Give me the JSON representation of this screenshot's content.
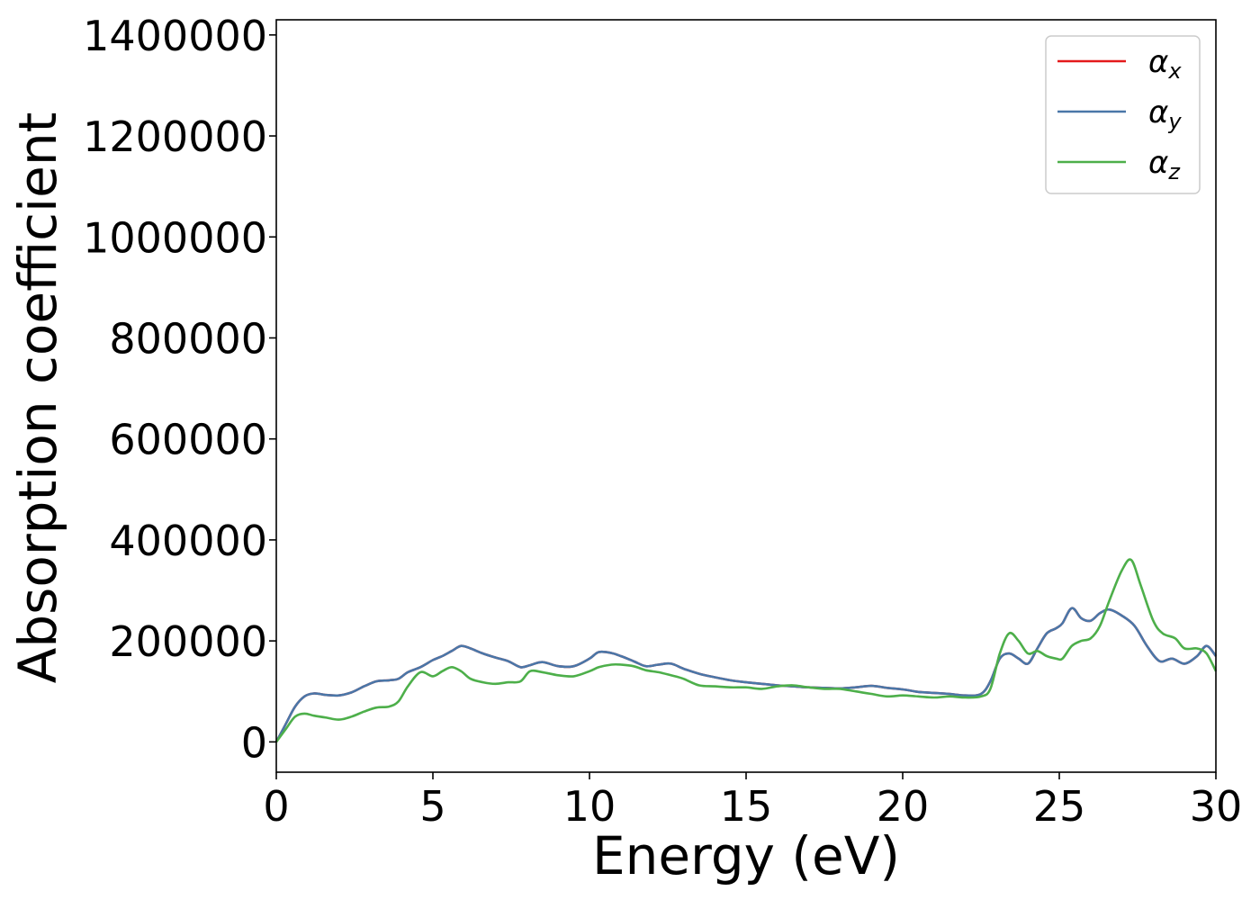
{
  "chart_data": {
    "type": "line",
    "title": "",
    "xlabel": "Energy (eV)",
    "ylabel": "Absorption coefficient",
    "xlim": [
      0,
      30
    ],
    "ylim": [
      -60000,
      1430000
    ],
    "xticks": [
      0,
      5,
      10,
      15,
      20,
      25,
      30
    ],
    "yticks": [
      0,
      200000,
      400000,
      600000,
      800000,
      1000000,
      1200000,
      1400000
    ],
    "xtick_labels": [
      "0",
      "5",
      "10",
      "15",
      "20",
      "25",
      "30"
    ],
    "ytick_labels": [
      "0",
      "200000",
      "400000",
      "600000",
      "800000",
      "1000000",
      "1200000",
      "1400000"
    ],
    "grid": false,
    "legend_position": "top-right",
    "series": [
      {
        "name": "α",
        "subscript": "x",
        "color": "#e41a1c",
        "x": [
          0,
          0.3,
          0.6,
          0.9,
          1.2,
          1.6,
          2.0,
          2.4,
          2.8,
          3.2,
          3.6,
          3.9,
          4.2,
          4.6,
          5.0,
          5.3,
          5.6,
          5.9,
          6.2,
          6.6,
          7.0,
          7.4,
          7.8,
          8.1,
          8.5,
          9.0,
          9.5,
          10.0,
          10.3,
          10.7,
          11.0,
          11.4,
          11.8,
          12.2,
          12.6,
          13.0,
          13.5,
          14.0,
          14.5,
          15.0,
          15.5,
          16.0,
          16.5,
          17.0,
          17.5,
          18.0,
          18.5,
          19.0,
          19.5,
          20.0,
          20.5,
          21.0,
          21.5,
          22.0,
          22.5,
          22.8,
          23.1,
          23.4,
          23.7,
          24.0,
          24.3,
          24.6,
          24.9,
          25.1,
          25.4,
          25.7,
          26.0,
          26.3,
          26.6,
          27.0,
          27.4,
          27.8,
          28.2,
          28.6,
          29.0,
          29.4,
          29.7,
          30.0
        ],
        "values": [
          0,
          35000,
          70000,
          90000,
          96000,
          93000,
          92000,
          98000,
          110000,
          120000,
          122000,
          125000,
          138000,
          148000,
          162000,
          170000,
          180000,
          190000,
          185000,
          175000,
          167000,
          160000,
          148000,
          152000,
          158000,
          150000,
          150000,
          165000,
          178000,
          176000,
          170000,
          160000,
          150000,
          153000,
          155000,
          145000,
          135000,
          128000,
          122000,
          118000,
          115000,
          112000,
          110000,
          108000,
          107000,
          106000,
          108000,
          111000,
          107000,
          104000,
          99000,
          97000,
          95000,
          92000,
          95000,
          120000,
          165000,
          175000,
          165000,
          155000,
          185000,
          215000,
          225000,
          235000,
          265000,
          245000,
          240000,
          255000,
          262000,
          250000,
          230000,
          190000,
          160000,
          165000,
          155000,
          170000,
          190000,
          170000
        ]
      },
      {
        "name": "α",
        "subscript": "y",
        "color": "#4a77a8",
        "x": [
          0,
          0.3,
          0.6,
          0.9,
          1.2,
          1.6,
          2.0,
          2.4,
          2.8,
          3.2,
          3.6,
          3.9,
          4.2,
          4.6,
          5.0,
          5.3,
          5.6,
          5.9,
          6.2,
          6.6,
          7.0,
          7.4,
          7.8,
          8.1,
          8.5,
          9.0,
          9.5,
          10.0,
          10.3,
          10.7,
          11.0,
          11.4,
          11.8,
          12.2,
          12.6,
          13.0,
          13.5,
          14.0,
          14.5,
          15.0,
          15.5,
          16.0,
          16.5,
          17.0,
          17.5,
          18.0,
          18.5,
          19.0,
          19.5,
          20.0,
          20.5,
          21.0,
          21.5,
          22.0,
          22.5,
          22.8,
          23.1,
          23.4,
          23.7,
          24.0,
          24.3,
          24.6,
          24.9,
          25.1,
          25.4,
          25.7,
          26.0,
          26.3,
          26.6,
          27.0,
          27.4,
          27.8,
          28.2,
          28.6,
          29.0,
          29.4,
          29.7,
          30.0
        ],
        "values": [
          0,
          35000,
          70000,
          90000,
          96000,
          93000,
          92000,
          98000,
          110000,
          120000,
          122000,
          125000,
          138000,
          148000,
          162000,
          170000,
          180000,
          190000,
          185000,
          175000,
          167000,
          160000,
          148000,
          152000,
          158000,
          150000,
          150000,
          165000,
          178000,
          176000,
          170000,
          160000,
          150000,
          153000,
          155000,
          145000,
          135000,
          128000,
          122000,
          118000,
          115000,
          112000,
          110000,
          108000,
          107000,
          106000,
          108000,
          111000,
          107000,
          104000,
          99000,
          97000,
          95000,
          92000,
          95000,
          120000,
          165000,
          175000,
          165000,
          155000,
          185000,
          215000,
          225000,
          235000,
          265000,
          245000,
          240000,
          255000,
          262000,
          250000,
          230000,
          190000,
          160000,
          165000,
          155000,
          170000,
          190000,
          170000
        ]
      },
      {
        "name": "α",
        "subscript": "z",
        "color": "#4daf4a",
        "x": [
          0,
          0.3,
          0.6,
          0.9,
          1.2,
          1.6,
          2.0,
          2.4,
          2.8,
          3.2,
          3.6,
          3.9,
          4.2,
          4.6,
          5.0,
          5.3,
          5.6,
          5.9,
          6.2,
          6.6,
          7.0,
          7.4,
          7.8,
          8.1,
          8.5,
          9.0,
          9.5,
          10.0,
          10.3,
          10.7,
          11.0,
          11.4,
          11.8,
          12.2,
          12.6,
          13.0,
          13.5,
          14.0,
          14.5,
          15.0,
          15.5,
          16.0,
          16.5,
          17.0,
          17.5,
          18.0,
          18.5,
          19.0,
          19.5,
          20.0,
          20.5,
          21.0,
          21.5,
          22.0,
          22.5,
          22.8,
          23.1,
          23.4,
          23.7,
          24.0,
          24.3,
          24.6,
          24.9,
          25.1,
          25.4,
          25.7,
          26.0,
          26.3,
          26.6,
          27.0,
          27.3,
          27.6,
          28.0,
          28.3,
          28.7,
          29.0,
          29.4,
          29.7,
          30.0
        ],
        "values": [
          0,
          25000,
          50000,
          56000,
          52000,
          48000,
          44000,
          50000,
          60000,
          68000,
          70000,
          80000,
          110000,
          138000,
          130000,
          140000,
          148000,
          140000,
          125000,
          118000,
          115000,
          118000,
          120000,
          140000,
          138000,
          132000,
          130000,
          140000,
          148000,
          153000,
          153000,
          150000,
          142000,
          138000,
          132000,
          125000,
          112000,
          110000,
          108000,
          108000,
          105000,
          110000,
          112000,
          108000,
          105000,
          105000,
          100000,
          95000,
          90000,
          92000,
          90000,
          88000,
          90000,
          88000,
          90000,
          105000,
          175000,
          215000,
          200000,
          175000,
          180000,
          170000,
          165000,
          165000,
          190000,
          200000,
          205000,
          230000,
          280000,
          340000,
          360000,
          310000,
          240000,
          215000,
          205000,
          185000,
          185000,
          175000,
          140000
        ]
      }
    ]
  }
}
